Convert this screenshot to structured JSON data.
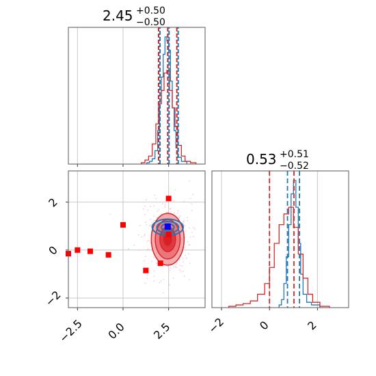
{
  "chart_data": [
    {
      "type": "histogram",
      "panel": "marginal-1",
      "title": {
        "value": "2.45",
        "plus": "+0.50",
        "minus": "−0.50"
      },
      "xlim": [
        -3.0,
        4.5
      ],
      "grid": true,
      "quantile_lines": [
        1.95,
        2.45,
        2.95
      ],
      "series": [
        {
          "color": "#1f77b4",
          "bins": [
            [
              1.3,
              1.45,
              0.01
            ],
            [
              1.45,
              1.6,
              0.02
            ],
            [
              1.6,
              1.75,
              0.04
            ],
            [
              1.75,
              1.9,
              0.1
            ],
            [
              1.9,
              2.0,
              0.25
            ],
            [
              2.0,
              2.1,
              0.45
            ],
            [
              2.1,
              2.2,
              0.65
            ],
            [
              2.2,
              2.3,
              0.82
            ],
            [
              2.3,
              2.4,
              0.95
            ],
            [
              2.4,
              2.5,
              0.92
            ],
            [
              2.5,
              2.6,
              0.85
            ],
            [
              2.6,
              2.7,
              0.62
            ],
            [
              2.7,
              2.8,
              0.42
            ],
            [
              2.8,
              2.9,
              0.25
            ],
            [
              2.9,
              3.0,
              0.12
            ],
            [
              3.0,
              3.2,
              0.05
            ],
            [
              3.2,
              3.5,
              0.02
            ]
          ]
        },
        {
          "color": "#d62728",
          "bins": [
            [
              1.0,
              1.2,
              0.01
            ],
            [
              1.2,
              1.4,
              0.03
            ],
            [
              1.4,
              1.6,
              0.06
            ],
            [
              1.6,
              1.8,
              0.15
            ],
            [
              1.8,
              1.95,
              0.3
            ],
            [
              1.95,
              2.1,
              0.45
            ],
            [
              2.1,
              2.25,
              0.55
            ],
            [
              2.25,
              2.4,
              0.68
            ],
            [
              2.4,
              2.55,
              0.7
            ],
            [
              2.55,
              2.7,
              0.55
            ],
            [
              2.7,
              2.85,
              0.42
            ],
            [
              2.85,
              3.0,
              0.28
            ],
            [
              3.0,
              3.2,
              0.14
            ],
            [
              3.2,
              3.4,
              0.06
            ],
            [
              3.4,
              3.7,
              0.02
            ],
            [
              3.7,
              4.0,
              0.01
            ]
          ]
        }
      ]
    },
    {
      "type": "contour",
      "panel": "joint",
      "xlim": [
        -3.0,
        4.5
      ],
      "ylim": [
        -2.4,
        3.3
      ],
      "yticks": [
        -2,
        0,
        2
      ],
      "xtick_labels": [
        "−2.5",
        "0.0",
        "2.5"
      ],
      "ytick_labels": [
        "−2",
        "0",
        "2"
      ],
      "grid": true,
      "truth": {
        "x": 2.45,
        "y": 0.53,
        "color": "#0000ff"
      },
      "square_markers": {
        "color": "#ff0000",
        "points": [
          [
            -3.0,
            -0.15
          ],
          [
            -2.5,
            0.0
          ],
          [
            -1.8,
            -0.05
          ],
          [
            -0.8,
            -0.2
          ],
          [
            0.0,
            1.05
          ],
          [
            1.25,
            -0.85
          ],
          [
            2.05,
            -0.55
          ],
          [
            2.5,
            2.15
          ],
          [
            2.5,
            0.65
          ]
        ]
      },
      "series": [
        {
          "color": "#d62728",
          "center": [
            2.45,
            0.45
          ],
          "sigma": [
            0.5,
            0.6
          ]
        },
        {
          "color": "#1f77b4",
          "center": [
            2.45,
            0.95
          ],
          "sigma": [
            0.5,
            0.2
          ]
        }
      ]
    },
    {
      "type": "histogram",
      "panel": "marginal-2",
      "title": {
        "value": "0.53",
        "plus": "+0.51",
        "minus": "−0.52"
      },
      "xlim": [
        -2.4,
        3.3
      ],
      "xticks": [
        -2,
        0,
        2
      ],
      "xtick_labels": [
        "−2",
        "0",
        "2"
      ],
      "grid": true,
      "quantile_lines": [
        0.0,
        1.02,
        0.75,
        1.25
      ],
      "series": [
        {
          "color": "#1f77b4",
          "bins": [
            [
              0.4,
              0.5,
              0.02
            ],
            [
              0.5,
              0.6,
              0.06
            ],
            [
              0.6,
              0.7,
              0.18
            ],
            [
              0.7,
              0.8,
              0.38
            ],
            [
              0.8,
              0.9,
              0.62
            ],
            [
              0.9,
              1.0,
              0.85
            ],
            [
              1.0,
              1.1,
              0.95
            ],
            [
              1.1,
              1.2,
              0.75
            ],
            [
              1.2,
              1.3,
              0.48
            ],
            [
              1.3,
              1.4,
              0.25
            ],
            [
              1.4,
              1.55,
              0.1
            ],
            [
              1.55,
              1.75,
              0.04
            ],
            [
              1.75,
              2.1,
              0.02
            ]
          ]
        },
        {
          "color": "#d62728",
          "bins": [
            [
              -1.7,
              -1.4,
              0.01
            ],
            [
              -1.4,
              -1.1,
              0.02
            ],
            [
              -1.1,
              -0.8,
              0.03
            ],
            [
              -0.8,
              -0.5,
              0.05
            ],
            [
              -0.5,
              -0.2,
              0.1
            ],
            [
              -0.2,
              0.0,
              0.18
            ],
            [
              0.0,
              0.2,
              0.3
            ],
            [
              0.2,
              0.4,
              0.48
            ],
            [
              0.4,
              0.6,
              0.62
            ],
            [
              0.6,
              0.8,
              0.7
            ],
            [
              0.8,
              1.0,
              0.75
            ],
            [
              1.0,
              1.2,
              0.6
            ],
            [
              1.2,
              1.4,
              0.4
            ],
            [
              1.4,
              1.6,
              0.22
            ],
            [
              1.6,
              1.8,
              0.1
            ],
            [
              1.8,
              2.1,
              0.04
            ],
            [
              2.1,
              2.5,
              0.01
            ]
          ]
        }
      ]
    }
  ]
}
